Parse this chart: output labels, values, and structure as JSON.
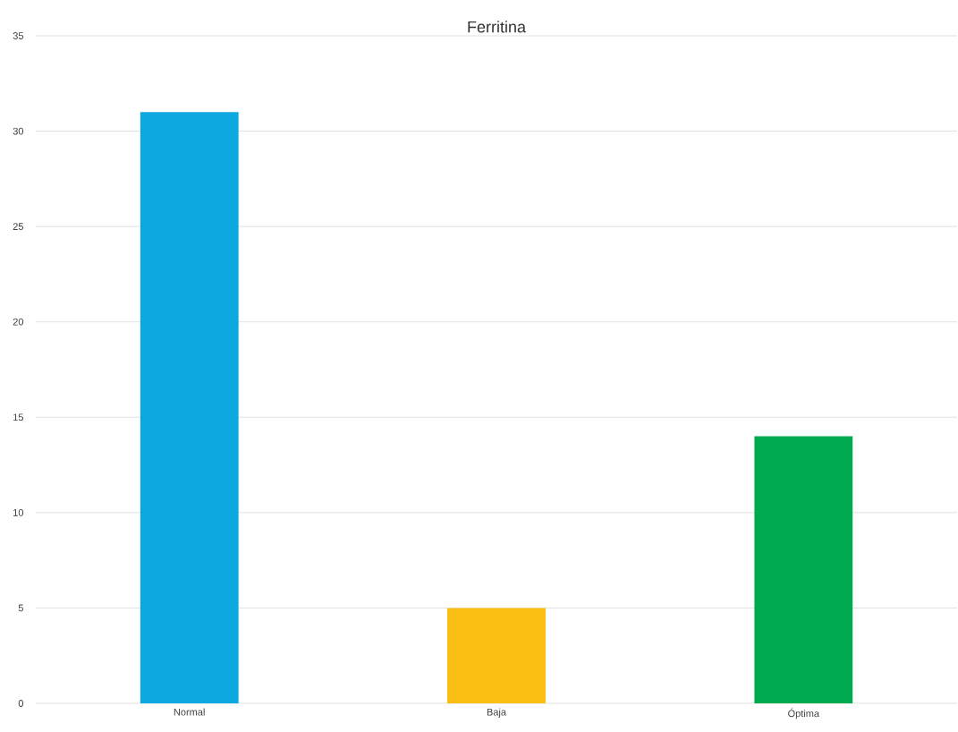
{
  "chart_data": {
    "type": "bar",
    "title": "Ferritina",
    "categories": [
      "Normal",
      "Baja",
      "Óptima"
    ],
    "values": [
      31,
      5,
      14
    ],
    "colors": [
      "#0ea8e0",
      "#fbbf14",
      "#00aa4f"
    ],
    "ylim": [
      0,
      35
    ],
    "yticks": [
      0,
      5,
      10,
      15,
      20,
      25,
      30,
      35
    ],
    "grid": "y"
  }
}
